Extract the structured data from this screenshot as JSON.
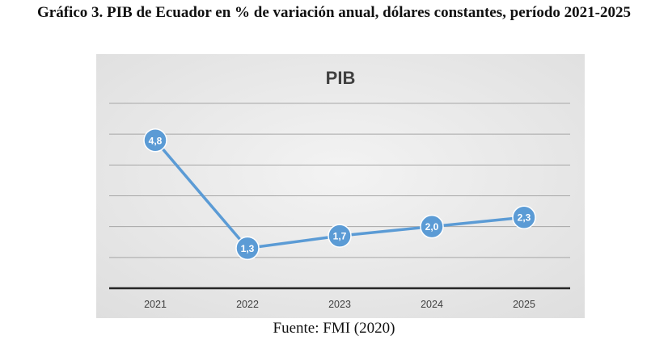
{
  "figure": {
    "caption": "Gráfico 3. PIB de Ecuador en % de variación anual, dólares constantes, período 2021-2025",
    "source": "Fuente: FMI (2020)"
  },
  "chart_data": {
    "type": "line",
    "title": "PIB",
    "categories": [
      "2021",
      "2022",
      "2023",
      "2024",
      "2025"
    ],
    "series": [
      {
        "values": [
          4.8,
          1.3,
          1.7,
          2.0,
          2.3
        ],
        "value_labels": [
          "4,8",
          "1,3",
          "1,7",
          "2,0",
          "2,3"
        ],
        "color": "#5b9bd5"
      }
    ],
    "ylim": [
      0,
      6
    ],
    "grid": true,
    "background": "#dedede"
  }
}
